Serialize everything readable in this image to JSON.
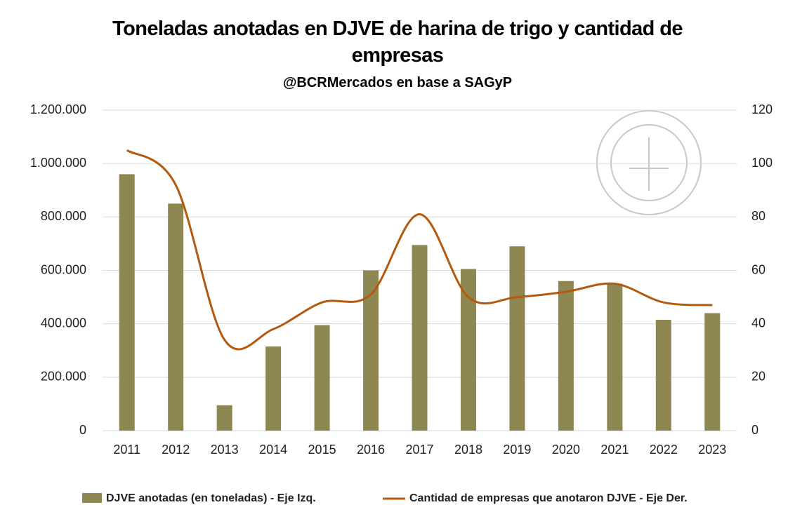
{
  "chart_data": {
    "type": "bar_line",
    "title": "Toneladas anotadas en DJVE de harina de trigo y cantidad de empresas",
    "subtitle": "@BCRMercados en base a SAGyP",
    "categories": [
      "2011",
      "2012",
      "2013",
      "2014",
      "2015",
      "2016",
      "2017",
      "2018",
      "2019",
      "2020",
      "2021",
      "2022",
      "2023"
    ],
    "series": [
      {
        "name": "DJVE anotadas (en toneladas) - Eje Izq.",
        "color": "#8f8752",
        "type": "bar",
        "values": [
          960000,
          850000,
          95000,
          315000,
          395000,
          600000,
          695000,
          605000,
          690000,
          560000,
          550000,
          415000,
          440000
        ]
      },
      {
        "name": "Cantidad de empresas que anotaron DJVE - Eje Der.",
        "color": "#b35a10",
        "type": "line",
        "axis": "y2",
        "values": [
          105,
          92,
          34,
          38,
          48,
          51,
          81,
          50,
          50,
          52,
          55,
          48,
          47
        ]
      }
    ],
    "ylim": [
      0,
      1200000
    ],
    "yticks": [
      0,
      {
        "value": 200000,
        "label": "200.000"
      },
      {
        "value": 400000,
        "label": "400.000"
      },
      {
        "value": 600000,
        "label": "600.000"
      },
      {
        "value": 800000,
        "label": "800.000"
      },
      {
        "value": 1000000,
        "label": "1.000.000"
      },
      {
        "value": 1200000,
        "label": "1.200.000"
      }
    ],
    "y2lim": [
      0,
      120
    ],
    "y2ticks": [
      0,
      20,
      40,
      60,
      80,
      100,
      120
    ],
    "grid": true,
    "legend": "bottom"
  }
}
